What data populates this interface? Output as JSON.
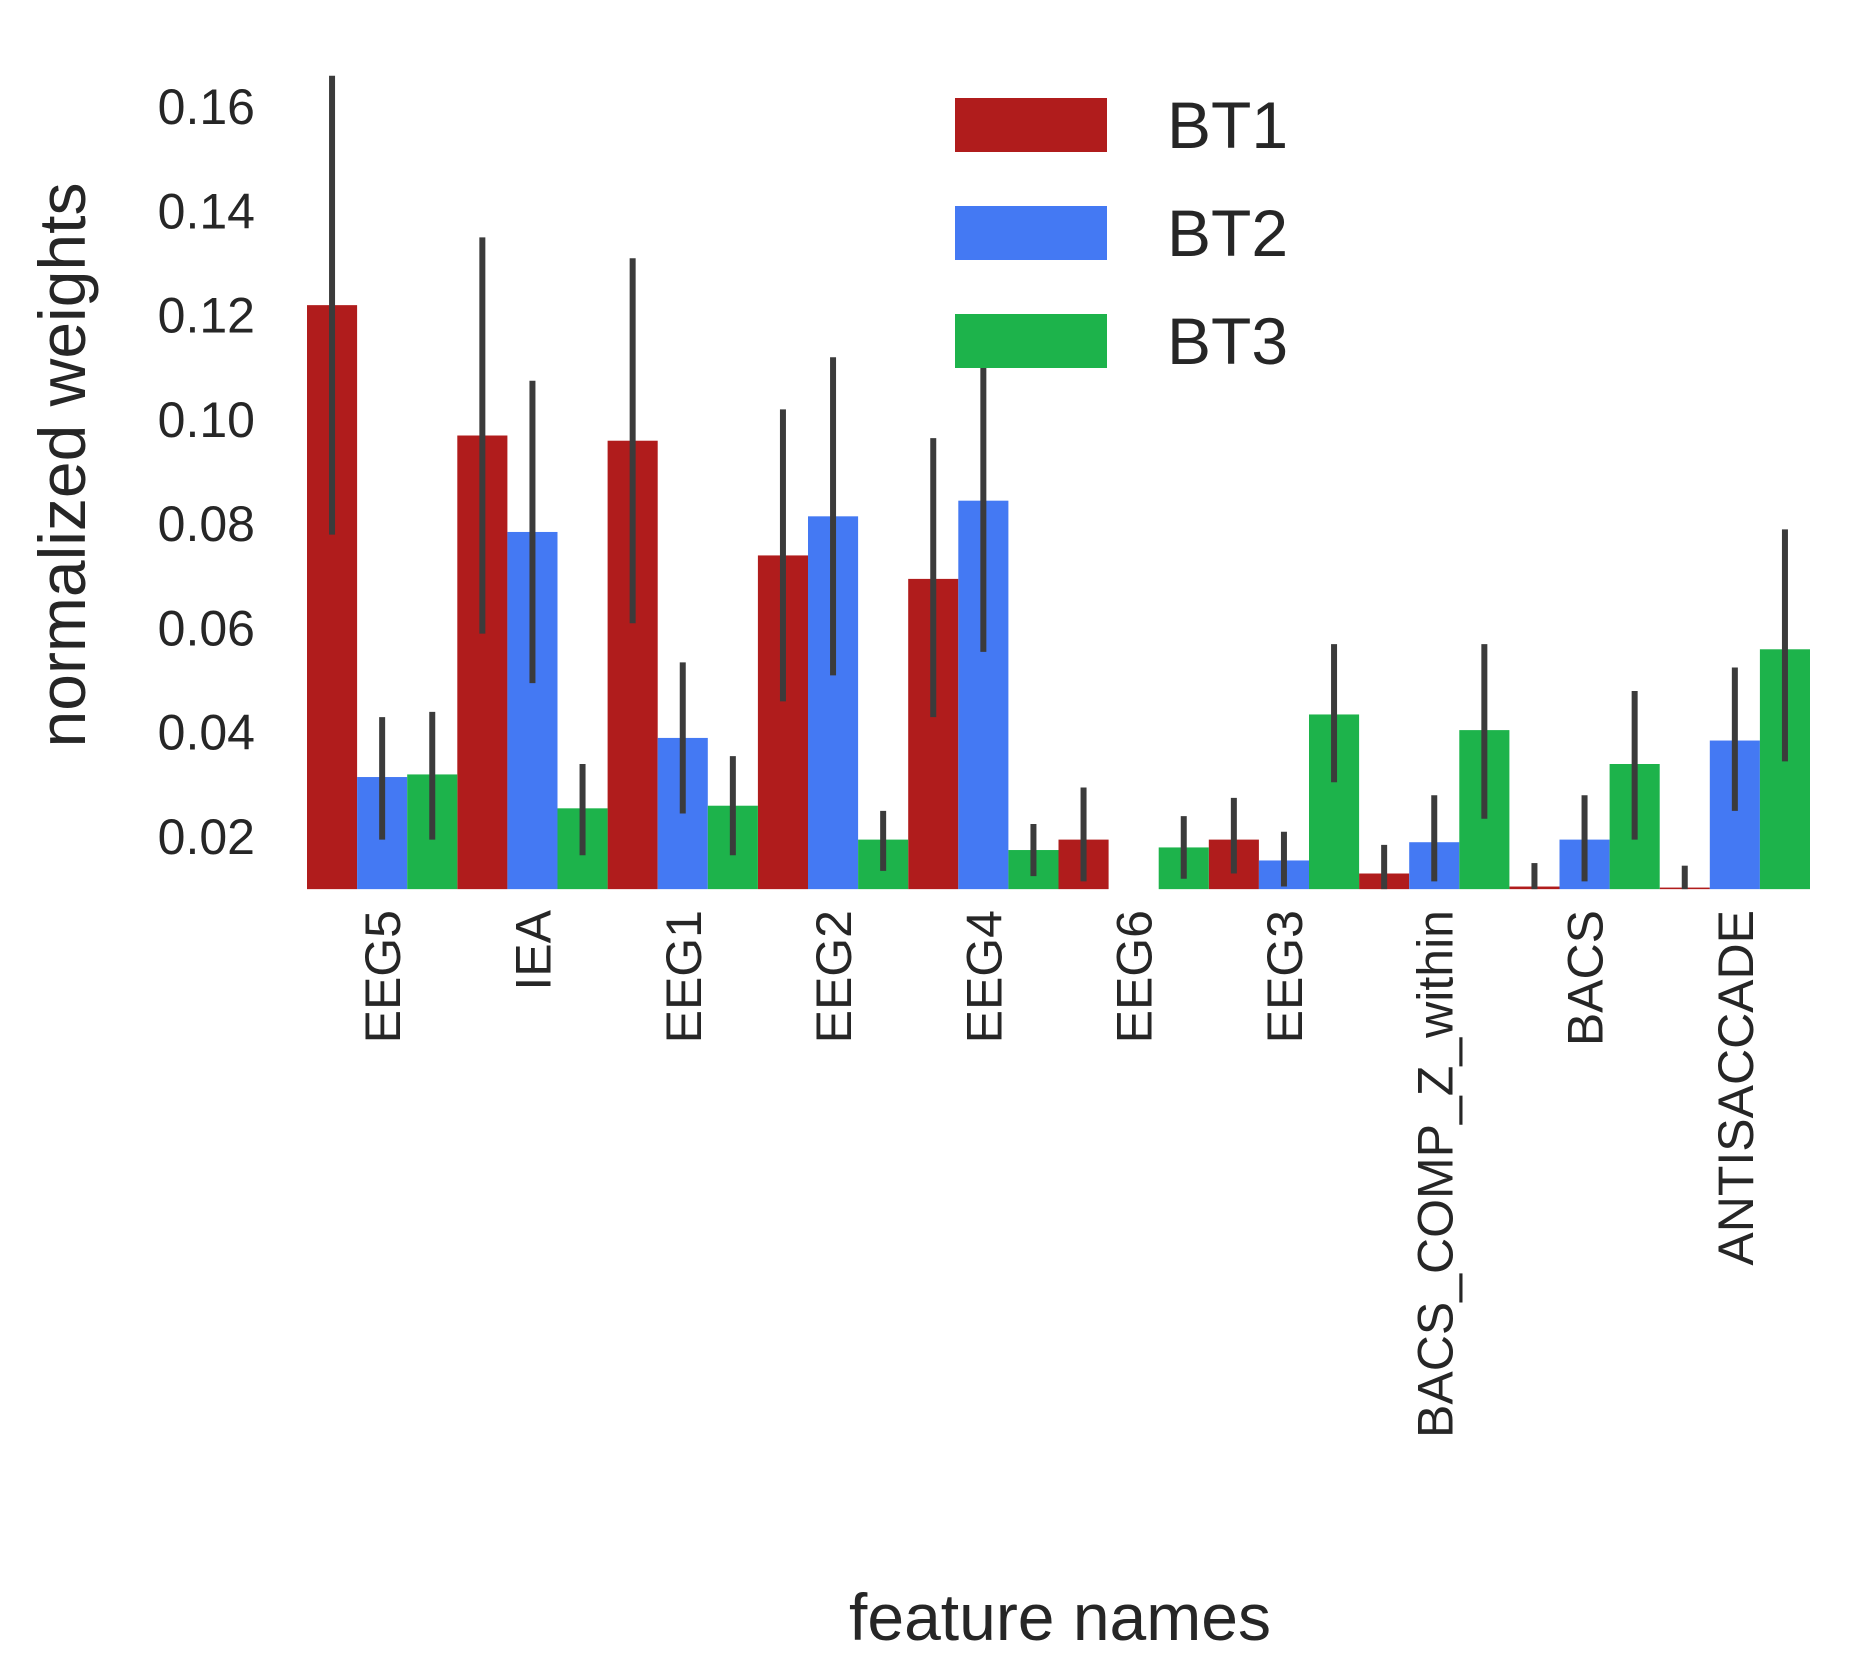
{
  "chart_data": {
    "type": "bar",
    "title": "",
    "xlabel": "feature names",
    "ylabel": "normalized weights",
    "ylim": [
      0.01,
      0.17
    ],
    "yticks": [
      0.02,
      0.04,
      0.06,
      0.08,
      0.1,
      0.12,
      0.14,
      0.16
    ],
    "ytick_labels": [
      "0.02",
      "0.04",
      "0.06",
      "0.08",
      "0.10",
      "0.12",
      "0.14",
      "0.16"
    ],
    "grid": false,
    "legend_position": "top-center",
    "categories": [
      "EEG5",
      "IEA",
      "EEG1",
      "EEG2",
      "EEG4",
      "EEG6",
      "EEG3",
      "BACS_COMP_Z_within",
      "BACS",
      "ANTISACCADE"
    ],
    "series": [
      {
        "name": "BT1",
        "color": "#b01c1c",
        "values": [
          0.122,
          0.097,
          0.096,
          0.074,
          0.0695,
          0.0195,
          0.0195,
          0.013,
          0.0105,
          0.0103
        ],
        "err_low": [
          0.078,
          0.059,
          0.061,
          0.046,
          0.043,
          0.0115,
          0.013,
          0.01,
          0.01,
          0.01
        ],
        "err_high": [
          0.166,
          0.135,
          0.131,
          0.102,
          0.0965,
          0.0295,
          0.0275,
          0.0185,
          0.015,
          0.0145
        ]
      },
      {
        "name": "BT2",
        "color": "#4479f3",
        "values": [
          0.0315,
          0.0785,
          0.039,
          0.0815,
          0.0845,
          null,
          0.0155,
          0.019,
          0.0195,
          0.0385
        ],
        "err_low": [
          0.0195,
          0.0495,
          0.0245,
          0.051,
          0.0555,
          null,
          0.0105,
          0.0115,
          0.0115,
          0.025
        ],
        "err_high": [
          0.043,
          0.1075,
          0.0535,
          0.112,
          0.112,
          null,
          0.021,
          0.028,
          0.028,
          0.0525
        ]
      },
      {
        "name": "BT3",
        "color": "#1db34b",
        "values": [
          0.032,
          0.0255,
          0.026,
          0.0195,
          0.0175,
          0.018,
          0.0435,
          0.0405,
          0.034,
          0.056
        ],
        "err_low": [
          0.0195,
          0.0165,
          0.0165,
          0.0135,
          0.0125,
          0.012,
          0.0305,
          0.0235,
          0.0195,
          0.0345
        ],
        "err_high": [
          0.044,
          0.034,
          0.0355,
          0.025,
          0.0225,
          0.024,
          0.057,
          0.057,
          0.048,
          0.079
        ]
      }
    ]
  }
}
